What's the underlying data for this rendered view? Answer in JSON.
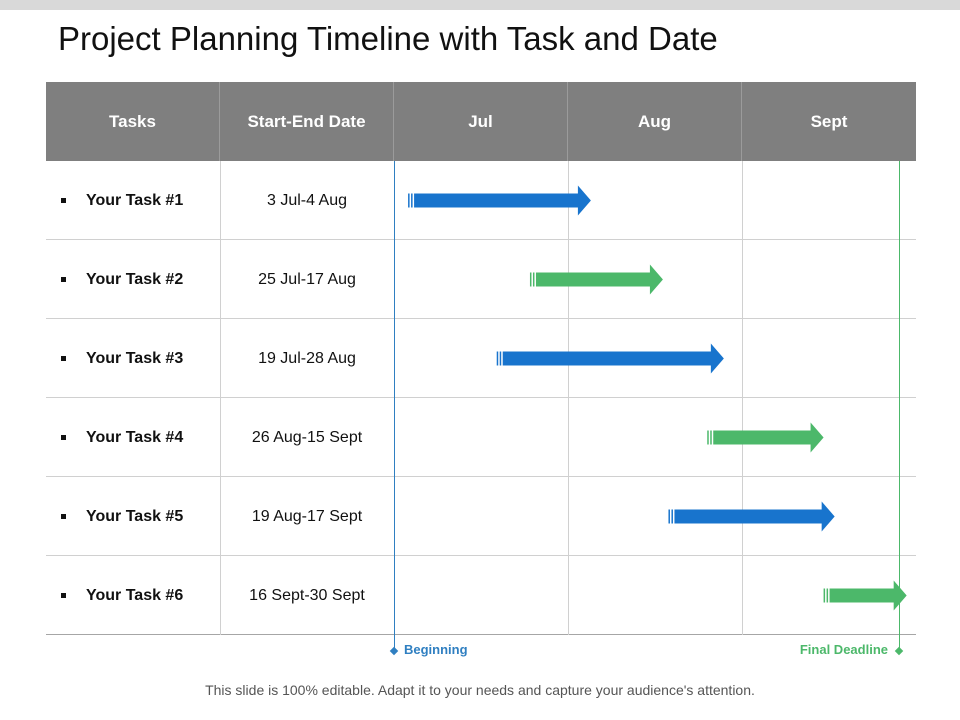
{
  "title": "Project Planning Timeline with Task and Date",
  "columns": [
    "Tasks",
    "Start-End Date",
    "Jul",
    "Aug",
    "Sept"
  ],
  "tasks": [
    {
      "name": "Your Task #1",
      "dates": "3 Jul-4 Aug",
      "start_day": 3,
      "end_day": 35,
      "color": "#1874cd"
    },
    {
      "name": "Your Task #2",
      "dates": "25 Jul-17 Aug",
      "start_day": 25,
      "end_day": 48,
      "color": "#4cb86a"
    },
    {
      "name": "Your Task #3",
      "dates": "19 Jul-28 Aug",
      "start_day": 19,
      "end_day": 59,
      "color": "#1874cd"
    },
    {
      "name": "Your Task #4",
      "dates": "26 Aug-15 Sept",
      "start_day": 57,
      "end_day": 77,
      "color": "#4cb86a"
    },
    {
      "name": "Your Task #5",
      "dates": "19 Aug-17 Sept",
      "start_day": 50,
      "end_day": 79,
      "color": "#1874cd"
    },
    {
      "name": "Your Task #6",
      "dates": "16 Sept-30 Sept",
      "start_day": 78,
      "end_day": 92,
      "color": "#4cb86a"
    }
  ],
  "markers": {
    "beginning": {
      "label": "Beginning",
      "color": "#2f7fc1"
    },
    "final_deadline": {
      "label": "Final Deadline",
      "color": "#4cb86a"
    }
  },
  "footer": "This slide is 100% editable. Adapt it to your needs and capture your audience's attention."
}
